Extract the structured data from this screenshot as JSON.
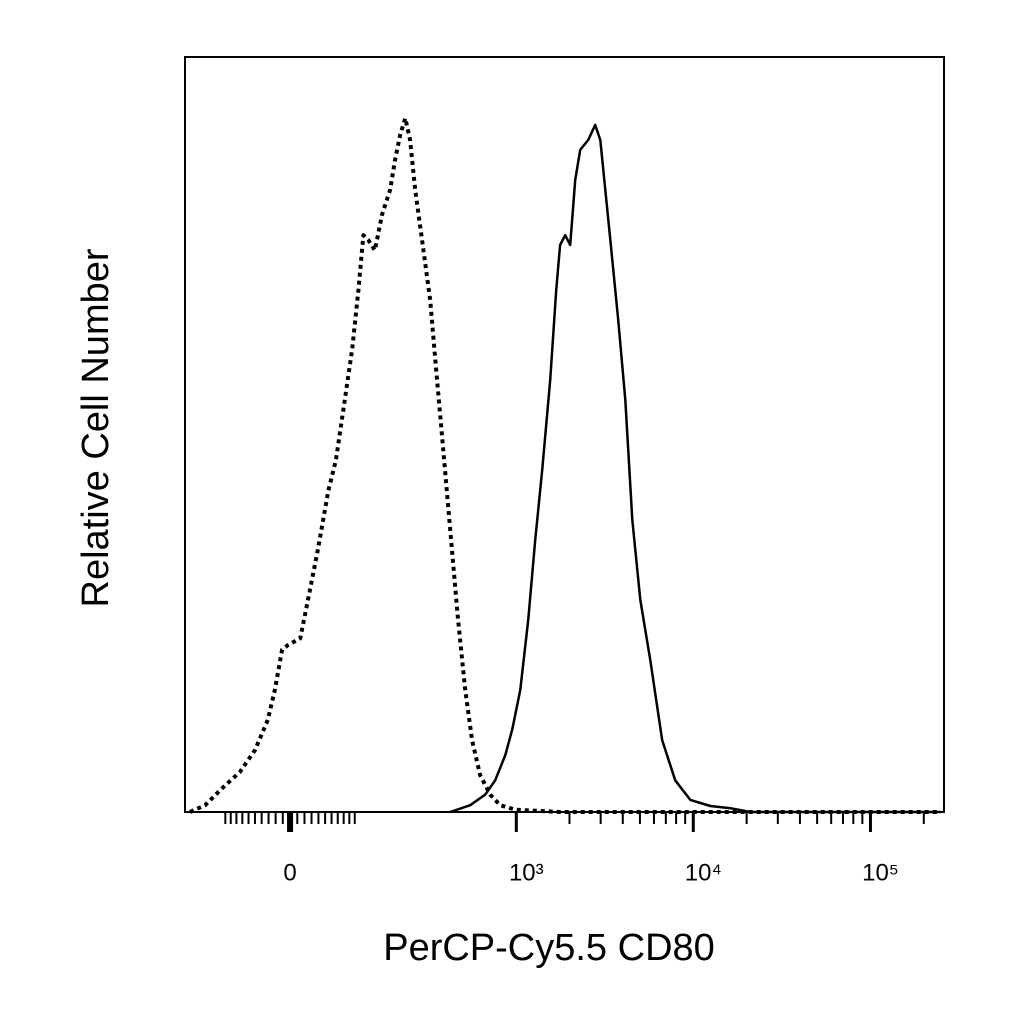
{
  "chart_data": {
    "type": "line",
    "x_label": "PerCP-Cy5.5 CD80",
    "y_label": "Relative Cell Number",
    "xscale": "biexponential",
    "xlim": [
      -194,
      260000
    ],
    "ylim": [
      0,
      100
    ],
    "xticks": [
      0,
      {
        "value": 1000,
        "label": "10³"
      },
      {
        "value": 10000,
        "label": "10⁴"
      },
      {
        "value": 100000,
        "label": "10⁵"
      }
    ],
    "xminorticks": [
      -100,
      -90,
      -80,
      -70,
      -60,
      -50,
      -40,
      -30,
      -20,
      -10,
      10,
      20,
      30,
      40,
      50,
      60,
      70,
      80,
      90,
      100,
      2000,
      3000,
      4000,
      5000,
      6000,
      7000,
      8000,
      9000,
      20000,
      30000,
      40000,
      50000,
      60000,
      70000,
      80000,
      90000,
      200000
    ],
    "series": [
      {
        "color": "#000000",
        "dash": "dotted",
        "x": [
          -180,
          -142,
          -110,
          -74,
          -50,
          -31,
          -21,
          -11,
          -3,
          14,
          25,
          39,
          55,
          67,
          82,
          95,
          107,
          117,
          127,
          142,
          159,
          180,
          194,
          209,
          225,
          241,
          259,
          285,
          319,
          346,
          381,
          418,
          465,
          511,
          560,
          622,
          710,
          810,
          986,
          1770,
          10960,
          248600
        ],
        "values": [
          0,
          0.9,
          2.9,
          5.3,
          8.2,
          12.2,
          16.2,
          21.5,
          22.1,
          23.0,
          28.1,
          34.7,
          42.6,
          46.6,
          54.6,
          61.2,
          69.1,
          76.4,
          75.8,
          74.4,
          79.1,
          82.4,
          86.4,
          89.7,
          91.9,
          89.0,
          82.4,
          75.8,
          67.8,
          58.5,
          47.9,
          37.4,
          25.4,
          16.2,
          9.5,
          4.9,
          2.3,
          0.9,
          0.3,
          0,
          0,
          0
        ]
      },
      {
        "color": "#000000",
        "dash": "solid",
        "x": [
          418,
          546,
          665,
          759,
          865,
          948,
          1053,
          1168,
          1279,
          1402,
          1556,
          1683,
          1770,
          1892,
          2019,
          2155,
          2300,
          2552,
          2796,
          2986,
          3185,
          3400,
          3771,
          4131,
          4524,
          5020,
          5717,
          6680,
          7910,
          9620,
          12490,
          16200,
          21000,
          248600
        ],
        "values": [
          0,
          0.9,
          2.3,
          4.2,
          7.5,
          10.9,
          16.2,
          25.4,
          36.0,
          45.3,
          57.2,
          69.1,
          75.1,
          76.4,
          75.1,
          83.7,
          87.7,
          89.0,
          91.0,
          89.0,
          82.4,
          75.8,
          65.2,
          54.6,
          38.7,
          28.1,
          20.1,
          9.5,
          4.2,
          1.6,
          0.8,
          0.5,
          0,
          0
        ]
      }
    ]
  }
}
